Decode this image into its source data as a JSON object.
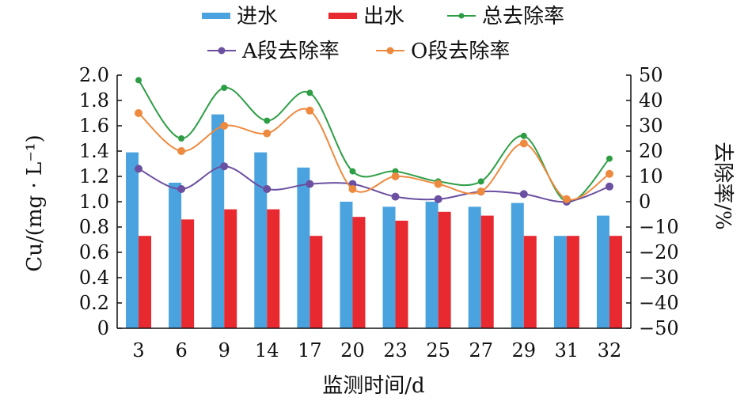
{
  "chart_data": {
    "type": "bar",
    "title": "",
    "xlabel": "监测时间/d",
    "ylabel": "Cu/(mg · L⁻¹)",
    "y2label": "去除率/%",
    "categories": [
      "3",
      "6",
      "9",
      "14",
      "17",
      "20",
      "23",
      "25",
      "27",
      "29",
      "31",
      "32"
    ],
    "ylim": [
      0,
      2.0
    ],
    "y_ticks": [
      "0",
      "0.2",
      "0.4",
      "0.6",
      "0.8",
      "1.0",
      "1.2",
      "1.4",
      "1.6",
      "1.8",
      "2.0"
    ],
    "y2lim": [
      -50,
      50
    ],
    "y2_ticks": [
      "-50",
      "-40",
      "-30",
      "-20",
      "-10",
      "0",
      "10",
      "20",
      "30",
      "40",
      "50"
    ],
    "grid": false,
    "legend_position": "top",
    "bar_series": [
      {
        "name": "进水",
        "color": "#4aa3df",
        "values": [
          1.39,
          1.15,
          1.69,
          1.39,
          1.27,
          1.0,
          0.96,
          1.0,
          0.96,
          0.99,
          0.73,
          0.89
        ]
      },
      {
        "name": "出水",
        "color": "#e8292f",
        "values": [
          0.73,
          0.86,
          0.94,
          0.94,
          0.73,
          0.88,
          0.85,
          0.92,
          0.89,
          0.73,
          0.73,
          0.73
        ]
      }
    ],
    "line_series": [
      {
        "name": "总去除率",
        "color": "#2e9e45",
        "values": [
          48,
          25,
          45,
          32,
          43,
          12,
          12,
          8,
          8,
          26,
          0,
          17
        ]
      },
      {
        "name": "A段去除率",
        "color": "#6b4fa0",
        "values": [
          13,
          5,
          14,
          5,
          7,
          7,
          2,
          1,
          4,
          3,
          0,
          6
        ]
      },
      {
        "name": "O段去除率",
        "color": "#ee8a3f",
        "values": [
          35,
          20,
          30,
          27,
          36,
          5,
          10,
          7,
          4,
          23,
          1,
          11
        ]
      }
    ]
  }
}
